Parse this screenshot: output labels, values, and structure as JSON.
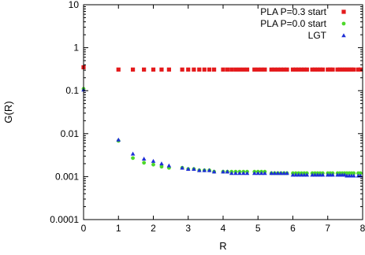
{
  "chart_data": {
    "type": "scatter",
    "title": "",
    "xlabel": "R",
    "ylabel": "G(R)",
    "xlim": [
      0,
      8
    ],
    "ylim": [
      0.0001,
      10
    ],
    "yscale": "log",
    "x_ticks": [
      "0",
      "1",
      "2",
      "3",
      "4",
      "5",
      "6",
      "7",
      "8"
    ],
    "y_ticks": [
      "0.0001",
      "0.001",
      "0.01",
      "0.1",
      "1",
      "10"
    ],
    "legend_position": "top-right",
    "grid": false,
    "series": [
      {
        "name": "PLA P=0.3 start",
        "color": "#e41a1c",
        "marker": "square",
        "points": [
          [
            0,
            0.35
          ],
          [
            1,
            0.31
          ],
          [
            1.414,
            0.31
          ],
          [
            1.732,
            0.31
          ],
          [
            2,
            0.31
          ],
          [
            2.236,
            0.31
          ],
          [
            2.449,
            0.31
          ],
          [
            2.828,
            0.31
          ],
          [
            3,
            0.31
          ],
          [
            3.162,
            0.31
          ],
          [
            3.317,
            0.31
          ],
          [
            3.464,
            0.31
          ],
          [
            3.606,
            0.31
          ],
          [
            3.742,
            0.31
          ],
          [
            4,
            0.31
          ],
          [
            4.123,
            0.31
          ],
          [
            4.243,
            0.31
          ],
          [
            4.359,
            0.31
          ],
          [
            4.472,
            0.31
          ],
          [
            4.583,
            0.31
          ],
          [
            4.69,
            0.31
          ],
          [
            4.899,
            0.31
          ],
          [
            5,
            0.31
          ],
          [
            5.099,
            0.31
          ],
          [
            5.196,
            0.31
          ],
          [
            5.385,
            0.31
          ],
          [
            5.477,
            0.31
          ],
          [
            5.568,
            0.31
          ],
          [
            5.657,
            0.31
          ],
          [
            5.745,
            0.31
          ],
          [
            5.831,
            0.31
          ],
          [
            6,
            0.31
          ],
          [
            6.083,
            0.31
          ],
          [
            6.164,
            0.31
          ],
          [
            6.245,
            0.31
          ],
          [
            6.325,
            0.31
          ],
          [
            6.403,
            0.31
          ],
          [
            6.557,
            0.31
          ],
          [
            6.633,
            0.31
          ],
          [
            6.708,
            0.31
          ],
          [
            6.782,
            0.31
          ],
          [
            6.856,
            0.31
          ],
          [
            7,
            0.31
          ],
          [
            7.071,
            0.31
          ],
          [
            7.141,
            0.31
          ],
          [
            7.28,
            0.31
          ],
          [
            7.348,
            0.31
          ],
          [
            7.416,
            0.31
          ],
          [
            7.483,
            0.31
          ],
          [
            7.55,
            0.31
          ],
          [
            7.616,
            0.31
          ],
          [
            7.681,
            0.31
          ],
          [
            7.746,
            0.31
          ],
          [
            7.874,
            0.31
          ],
          [
            7.937,
            0.31
          ]
        ]
      },
      {
        "name": "PLA P=0.0 start",
        "color": "#4dd82a",
        "marker": "circle",
        "points": [
          [
            0,
            0.11
          ],
          [
            1,
            0.0068
          ],
          [
            1.414,
            0.0027
          ],
          [
            1.732,
            0.0021
          ],
          [
            2,
            0.0019
          ],
          [
            2.236,
            0.0017
          ],
          [
            2.449,
            0.0016
          ],
          [
            2.828,
            0.0016
          ],
          [
            3,
            0.0015
          ],
          [
            3.162,
            0.0015
          ],
          [
            3.317,
            0.0014
          ],
          [
            3.464,
            0.0014
          ],
          [
            3.606,
            0.0014
          ],
          [
            3.742,
            0.0013
          ],
          [
            4,
            0.0013
          ],
          [
            4.123,
            0.0013
          ],
          [
            4.243,
            0.0013
          ],
          [
            4.359,
            0.0013
          ],
          [
            4.472,
            0.0013
          ],
          [
            4.583,
            0.0013
          ],
          [
            4.69,
            0.0013
          ],
          [
            4.899,
            0.0013
          ],
          [
            5,
            0.0013
          ],
          [
            5.099,
            0.0013
          ],
          [
            5.196,
            0.0013
          ],
          [
            5.385,
            0.0012
          ],
          [
            5.477,
            0.0012
          ],
          [
            5.568,
            0.0012
          ],
          [
            5.657,
            0.0012
          ],
          [
            5.745,
            0.0012
          ],
          [
            5.831,
            0.0012
          ],
          [
            6,
            0.0012
          ],
          [
            6.083,
            0.0012
          ],
          [
            6.164,
            0.0012
          ],
          [
            6.245,
            0.0012
          ],
          [
            6.325,
            0.0012
          ],
          [
            6.403,
            0.0012
          ],
          [
            6.557,
            0.0012
          ],
          [
            6.633,
            0.0012
          ],
          [
            6.708,
            0.0012
          ],
          [
            6.782,
            0.0012
          ],
          [
            6.856,
            0.0012
          ],
          [
            7,
            0.0012
          ],
          [
            7.071,
            0.0012
          ],
          [
            7.141,
            0.0012
          ],
          [
            7.28,
            0.0012
          ],
          [
            7.348,
            0.0012
          ],
          [
            7.416,
            0.0012
          ],
          [
            7.483,
            0.0012
          ],
          [
            7.55,
            0.0012
          ],
          [
            7.616,
            0.0012
          ],
          [
            7.681,
            0.0012
          ],
          [
            7.746,
            0.0012
          ],
          [
            7.874,
            0.0012
          ],
          [
            7.937,
            0.0012
          ]
        ]
      },
      {
        "name": "LGT",
        "color": "#1f2fd6",
        "marker": "triangle",
        "points": [
          [
            0,
            0.105
          ],
          [
            1,
            0.0072
          ],
          [
            1.414,
            0.0034
          ],
          [
            1.732,
            0.0026
          ],
          [
            2,
            0.0023
          ],
          [
            2.236,
            0.002
          ],
          [
            2.449,
            0.0018
          ],
          [
            2.828,
            0.0016
          ],
          [
            3,
            0.0015
          ],
          [
            3.162,
            0.0015
          ],
          [
            3.317,
            0.0014
          ],
          [
            3.464,
            0.0014
          ],
          [
            3.606,
            0.0014
          ],
          [
            3.742,
            0.0013
          ],
          [
            4,
            0.0013
          ],
          [
            4.123,
            0.0013
          ],
          [
            4.243,
            0.0012
          ],
          [
            4.359,
            0.0012
          ],
          [
            4.472,
            0.0012
          ],
          [
            4.583,
            0.0012
          ],
          [
            4.69,
            0.0012
          ],
          [
            4.899,
            0.0012
          ],
          [
            5,
            0.0012
          ],
          [
            5.099,
            0.0012
          ],
          [
            5.196,
            0.0012
          ],
          [
            5.385,
            0.0012
          ],
          [
            5.477,
            0.0012
          ],
          [
            5.568,
            0.0012
          ],
          [
            5.657,
            0.0012
          ],
          [
            5.745,
            0.0012
          ],
          [
            5.831,
            0.0012
          ],
          [
            6,
            0.0011
          ],
          [
            6.083,
            0.0011
          ],
          [
            6.164,
            0.0011
          ],
          [
            6.245,
            0.0011
          ],
          [
            6.325,
            0.0011
          ],
          [
            6.403,
            0.0011
          ],
          [
            6.557,
            0.0011
          ],
          [
            6.633,
            0.0011
          ],
          [
            6.708,
            0.0011
          ],
          [
            6.782,
            0.0011
          ],
          [
            6.856,
            0.0011
          ],
          [
            7,
            0.0011
          ],
          [
            7.071,
            0.0011
          ],
          [
            7.141,
            0.0011
          ],
          [
            7.28,
            0.0011
          ],
          [
            7.348,
            0.0011
          ],
          [
            7.416,
            0.0011
          ],
          [
            7.483,
            0.0011
          ],
          [
            7.55,
            0.00105
          ],
          [
            7.616,
            0.00105
          ],
          [
            7.681,
            0.00105
          ],
          [
            7.746,
            0.00105
          ],
          [
            7.874,
            0.00105
          ],
          [
            7.937,
            0.00105
          ]
        ]
      }
    ]
  }
}
